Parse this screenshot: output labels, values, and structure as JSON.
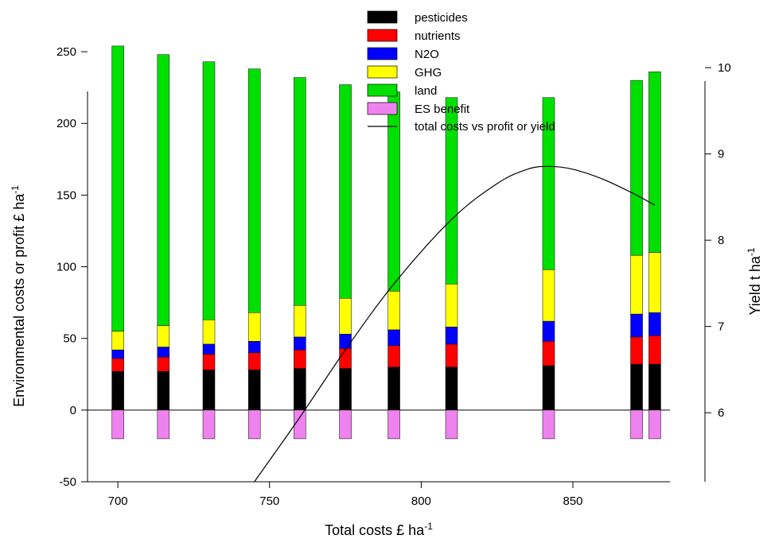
{
  "chart_data": {
    "type": "bar",
    "stacked": true,
    "xlabel": {
      "text": "Total costs £ ha",
      "sup": "-1"
    },
    "ylabel": {
      "text": "Environmental costs or profit £ ha",
      "sup": "-1"
    },
    "y2label": {
      "text": "Yield t ha",
      "sup": "-1"
    },
    "xlim": [
      690,
      882
    ],
    "ylim": [
      -50,
      275
    ],
    "y2lim": [
      5.2,
      10.6
    ],
    "xticks": [
      700,
      750,
      800,
      850
    ],
    "yticks": [
      -50,
      0,
      50,
      100,
      150,
      200,
      250
    ],
    "y2ticks": [
      6,
      7,
      8,
      9,
      10
    ],
    "x": [
      700,
      715,
      730,
      745,
      760,
      775,
      791,
      810,
      842,
      871,
      877
    ],
    "series": [
      {
        "name": "pesticides",
        "color": "#000000",
        "values": [
          27,
          27,
          28,
          28,
          29,
          29,
          30,
          30,
          31,
          32,
          32
        ]
      },
      {
        "name": "nutrients",
        "color": "#ff0000",
        "values": [
          9,
          10,
          11,
          12,
          13,
          14,
          15,
          16,
          17,
          19,
          20
        ]
      },
      {
        "name": "N2O",
        "color": "#0000ff",
        "values": [
          6,
          7,
          7,
          8,
          9,
          10,
          11,
          12,
          14,
          16,
          16
        ]
      },
      {
        "name": "GHG",
        "color": "#ffff00",
        "values": [
          13,
          15,
          17,
          20,
          22,
          25,
          27,
          30,
          36,
          41,
          42
        ]
      },
      {
        "name": "land",
        "color": "#00e000",
        "values": [
          199,
          189,
          180,
          170,
          159,
          149,
          139,
          130,
          120,
          122,
          126
        ]
      },
      {
        "name": "ES benefit",
        "color": "#ee82ee",
        "values": [
          -20,
          -20,
          -20,
          -20,
          -20,
          -20,
          -20,
          -20,
          -20,
          -20,
          -20
        ]
      }
    ],
    "line": {
      "name": "total costs vs profit or yield",
      "color": "#000000",
      "x": [
        745,
        760,
        775,
        791,
        810,
        825,
        835,
        842,
        850,
        860,
        870,
        877
      ],
      "y": [
        -50,
        -5,
        42,
        88,
        133,
        158,
        168,
        170,
        168,
        161,
        151,
        143
      ]
    },
    "legend_position": "top-center",
    "grid": false
  }
}
